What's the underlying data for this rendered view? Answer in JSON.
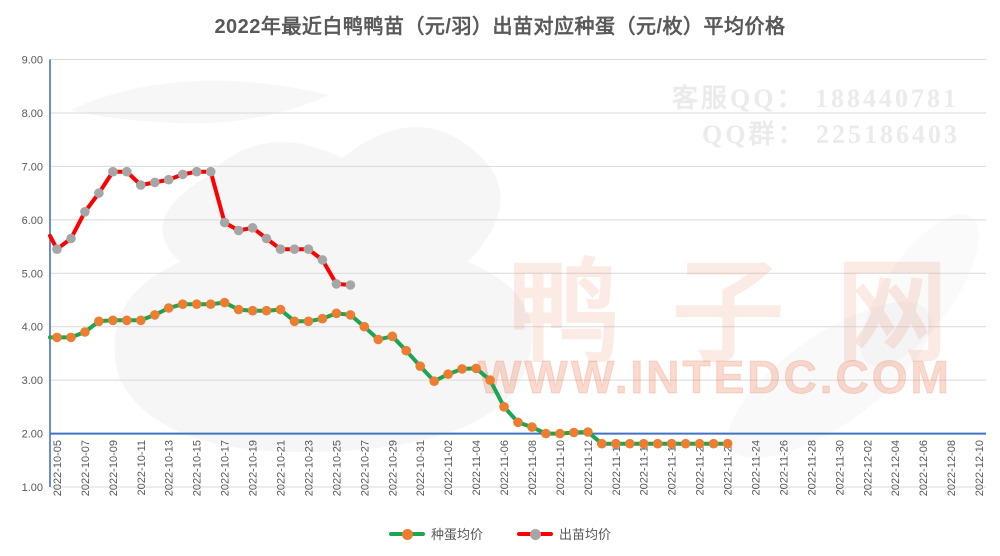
{
  "title": {
    "text": "2022年最近白鸭鸭苗（元/羽）出苗对应种蛋（元/枚）平均价格"
  },
  "watermarks": {
    "qq_service": "客服QQ： 188440781",
    "qq_group": "QQ群： 225186403",
    "site_name": "鸭子网",
    "site_url": "WWW.INTEDC.COM",
    "accent_color": "#E96B48",
    "light_gray_color": "#EBEBEB"
  },
  "legend": {
    "items": [
      {
        "label": "种蛋均价",
        "line_color": "#1AA653",
        "marker_color": "#ED7D31"
      },
      {
        "label": "出苗均价",
        "line_color": "#FE0000",
        "marker_color": "#A6A6A6"
      }
    ]
  },
  "chart_data": {
    "type": "line",
    "title": "2022年最近白鸭鸭苗（元/羽）出苗对应种蛋（元/枚）平均价格",
    "grid": "horizontal",
    "legend_position": "bottom",
    "gridline_color": "#D9D9D9",
    "axis_color": "#4472C4",
    "tick_label_color": "#595959",
    "y_axis": {
      "min": 1,
      "max": 9,
      "tick_step": 1,
      "tick_labels": [
        "9.00",
        "8.00",
        "7.00",
        "6.00",
        "5.00",
        "4.00",
        "3.00",
        "2.00",
        "1.00"
      ],
      "x_axis_crosses_at": 2.0
    },
    "x_axis": {
      "daily_categories": true,
      "start": "2022-10-05",
      "end": "2022-12-10",
      "num_categories": 67,
      "tick_every_days": 2,
      "tick_labels": [
        "2022-10-05",
        "2022-10-07",
        "2022-10-09",
        "2022-10-11",
        "2022-10-13",
        "2022-10-15",
        "2022-10-17",
        "2022-10-19",
        "2022-10-21",
        "2022-10-23",
        "2022-10-25",
        "2022-10-27",
        "2022-10-29",
        "2022-10-31",
        "2022-11-02",
        "2022-11-04",
        "2022-11-06",
        "2022-11-08",
        "2022-11-10",
        "2022-11-12",
        "2022-11-14",
        "2022-11-16",
        "2022-11-18",
        "2022-11-20",
        "2022-11-22",
        "2022-11-24",
        "2022-11-26",
        "2022-11-28",
        "2022-11-30",
        "2022-12-02",
        "2022-12-04",
        "2022-12-06",
        "2022-12-08",
        "2022-12-10"
      ]
    },
    "series": [
      {
        "name": "种蛋均价",
        "unit": "元/枚",
        "line_color": "#1AA653",
        "marker_color": "#ED7D31",
        "start_date": "2022-10-05",
        "end_date": "2022-11-22",
        "edge_value": 3.8,
        "values": [
          3.8,
          3.8,
          3.9,
          4.1,
          4.12,
          4.12,
          4.12,
          4.22,
          4.35,
          4.42,
          4.42,
          4.42,
          4.45,
          4.32,
          4.3,
          4.3,
          4.32,
          4.1,
          4.1,
          4.15,
          4.25,
          4.22,
          4.0,
          3.76,
          3.82,
          3.55,
          3.26,
          2.98,
          3.11,
          3.21,
          3.22,
          3.0,
          2.5,
          2.21,
          2.12,
          2.0,
          2.0,
          2.02,
          2.03,
          1.81,
          1.81,
          1.81,
          1.81,
          1.81,
          1.81,
          1.81,
          1.81,
          1.81,
          1.81
        ]
      },
      {
        "name": "出苗均价",
        "unit": "元/羽",
        "line_color": "#FE0000",
        "marker_color": "#A6A6A6",
        "start_date": "2022-10-05",
        "end_date": "2022-10-26",
        "edge_value": 5.7,
        "values": [
          5.45,
          5.65,
          6.15,
          6.5,
          6.9,
          6.9,
          6.65,
          6.7,
          6.75,
          6.85,
          6.9,
          6.9,
          5.95,
          5.8,
          5.85,
          5.65,
          5.45,
          5.45,
          5.45,
          5.25,
          4.8,
          4.78
        ]
      }
    ]
  }
}
